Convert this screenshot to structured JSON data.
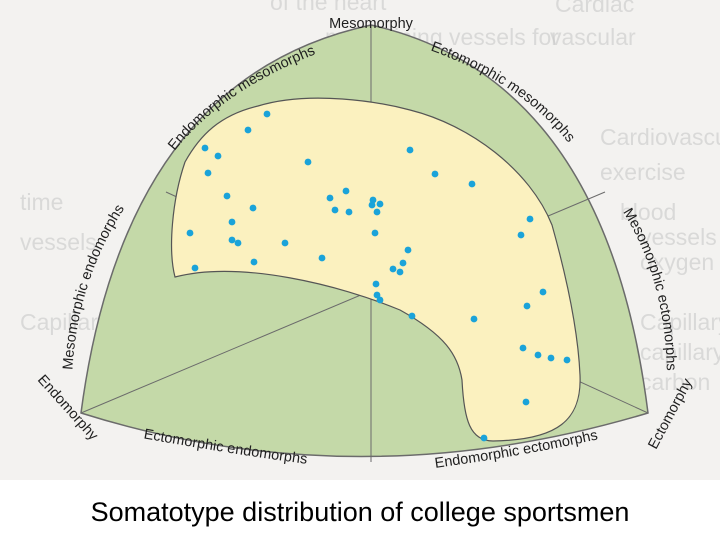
{
  "caption": "Somatotype distribution of college sportsmen",
  "labels": {
    "mesomorphy": "Mesomorphy",
    "endomorphy": "Endomorphy",
    "ectomorphy": "Ectomorphy",
    "endomorphic_mesomorphs": "Endomorphic mesomorphs",
    "ectomorphic_mesomorphs": "Ectomorphic mesomorphs",
    "mesomorphic_endomorphs": "Mesomorphic endomorphs",
    "mesomorphic_ectomorphs": "Mesomorphic ectomorphs",
    "ectomorphic_endomorphs": "Ectomorphic endomorphs",
    "endomorphic_ectomorphs": "Endomorphic ectomorphs"
  },
  "colors": {
    "triangle_fill": "#c4d9a8",
    "triangle_stroke": "#6b6b6b",
    "region_fill": "#fbf1bf",
    "region_stroke": "#555555",
    "point": "#1aa3d9",
    "caption": "#000000"
  },
  "point_count": 58
}
